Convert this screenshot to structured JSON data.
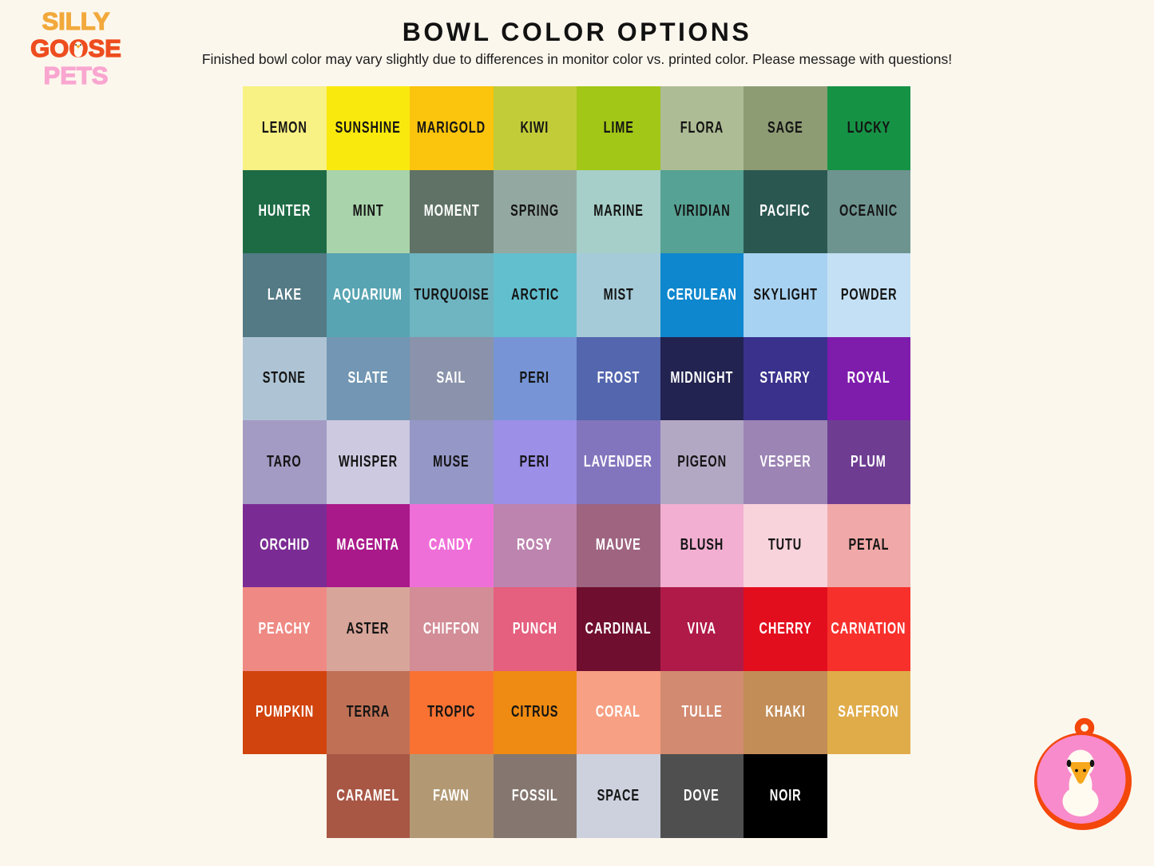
{
  "logo": {
    "line1": "SILLY",
    "line2_pre": "GO",
    "line2_o": "O",
    "line2_post": "SE",
    "line3": "PETS",
    "colors": {
      "silly": "#F2A93B",
      "goose": "#EE4D1F",
      "pets": "#F9A6D0"
    }
  },
  "header": {
    "title": "BOWL COLOR OPTIONS",
    "subtitle": "Finished bowl color may vary slightly due to differences in monitor color vs. printed color. Please message with questions!"
  },
  "grid": {
    "rows": [
      {
        "offset": 0,
        "cells": [
          {
            "name": "LEMON",
            "color": "#F8F183",
            "text": "#141414"
          },
          {
            "name": "SUNSHINE",
            "color": "#FAE90D",
            "text": "#141414"
          },
          {
            "name": "MARIGOLD",
            "color": "#FBC40D",
            "text": "#141414"
          },
          {
            "name": "KIWI",
            "color": "#C2CC39",
            "text": "#141414"
          },
          {
            "name": "LIME",
            "color": "#A2C717",
            "text": "#141414"
          },
          {
            "name": "FLORA",
            "color": "#ADBC94",
            "text": "#141414"
          },
          {
            "name": "SAGE",
            "color": "#8E9C74",
            "text": "#141414"
          },
          {
            "name": "LUCKY",
            "color": "#169245",
            "text": "#141414"
          }
        ]
      },
      {
        "offset": 0,
        "cells": [
          {
            "name": "HUNTER",
            "color": "#1D6B45",
            "text": "#FFFFFF"
          },
          {
            "name": "MINT",
            "color": "#A9D3AA",
            "text": "#141414"
          },
          {
            "name": "MOMENT",
            "color": "#5F7265",
            "text": "#FFFFFF"
          },
          {
            "name": "SPRING",
            "color": "#94A8A2",
            "text": "#141414"
          },
          {
            "name": "MARINE",
            "color": "#A5CFC8",
            "text": "#141414"
          },
          {
            "name": "VIRIDIAN",
            "color": "#56A294",
            "text": "#141414"
          },
          {
            "name": "PACIFIC",
            "color": "#2B5751",
            "text": "#FFFFFF"
          },
          {
            "name": "OCEANIC",
            "color": "#6E9490",
            "text": "#141414"
          }
        ]
      },
      {
        "offset": 0,
        "cells": [
          {
            "name": "LAKE",
            "color": "#537A85",
            "text": "#FFFFFF"
          },
          {
            "name": "AQUARIUM",
            "color": "#58A4B2",
            "text": "#FFFFFF"
          },
          {
            "name": "TURQUOISE",
            "color": "#6FB4C1",
            "text": "#141414"
          },
          {
            "name": "ARCTIC",
            "color": "#62BFCE",
            "text": "#141414"
          },
          {
            "name": "MIST",
            "color": "#A5CBD9",
            "text": "#141414"
          },
          {
            "name": "CERULEAN",
            "color": "#0E87CE",
            "text": "#FFFFFF"
          },
          {
            "name": "SKYLIGHT",
            "color": "#A8D2F2",
            "text": "#141414"
          },
          {
            "name": "POWDER",
            "color": "#C4E0F4",
            "text": "#141414"
          }
        ]
      },
      {
        "offset": 0,
        "cells": [
          {
            "name": "STONE",
            "color": "#AEC4D4",
            "text": "#141414"
          },
          {
            "name": "SLATE",
            "color": "#7296B3",
            "text": "#FFFFFF"
          },
          {
            "name": "SAIL",
            "color": "#8A93AB",
            "text": "#FFFFFF"
          },
          {
            "name": "PERI",
            "color": "#7795D6",
            "text": "#141414"
          },
          {
            "name": "FROST",
            "color": "#5366AE",
            "text": "#FFFFFF"
          },
          {
            "name": "MIDNIGHT",
            "color": "#222350",
            "text": "#FFFFFF"
          },
          {
            "name": "STARRY",
            "color": "#39318C",
            "text": "#FFFFFF"
          },
          {
            "name": "ROYAL",
            "color": "#7E1CAC",
            "text": "#FFFFFF"
          }
        ]
      },
      {
        "offset": 0,
        "cells": [
          {
            "name": "TARO",
            "color": "#A49BC4",
            "text": "#141414"
          },
          {
            "name": "WHISPER",
            "color": "#CCC9E0",
            "text": "#141414"
          },
          {
            "name": "MUSE",
            "color": "#9597C7",
            "text": "#141414"
          },
          {
            "name": "PERI",
            "color": "#9C8FE8",
            "text": "#141414"
          },
          {
            "name": "LAVENDER",
            "color": "#8375BD",
            "text": "#FFFFFF"
          },
          {
            "name": "PIGEON",
            "color": "#B3A8C4",
            "text": "#141414"
          },
          {
            "name": "VESPER",
            "color": "#9C84B4",
            "text": "#FFFFFF"
          },
          {
            "name": "PLUM",
            "color": "#6E3D91",
            "text": "#FFFFFF"
          }
        ]
      },
      {
        "offset": 0,
        "cells": [
          {
            "name": "ORCHID",
            "color": "#7B2C94",
            "text": "#FFFFFF"
          },
          {
            "name": "MAGENTA",
            "color": "#A9198A",
            "text": "#FFFFFF"
          },
          {
            "name": "CANDY",
            "color": "#EF6FD8",
            "text": "#FFFFFF"
          },
          {
            "name": "ROSY",
            "color": "#BD84AF",
            "text": "#FFFFFF"
          },
          {
            "name": "MAUVE",
            "color": "#9E6480",
            "text": "#FFFFFF"
          },
          {
            "name": "BLUSH",
            "color": "#F2AFD1",
            "text": "#141414"
          },
          {
            "name": "TUTU",
            "color": "#F8D3DC",
            "text": "#141414"
          },
          {
            "name": "PETAL",
            "color": "#F0A9A8",
            "text": "#141414"
          }
        ]
      },
      {
        "offset": 0,
        "cells": [
          {
            "name": "PEACHY",
            "color": "#EF8984",
            "text": "#FFFFFF"
          },
          {
            "name": "ASTER",
            "color": "#D8A59A",
            "text": "#141414"
          },
          {
            "name": "CHIFFON",
            "color": "#D28D96",
            "text": "#FFFFFF"
          },
          {
            "name": "PUNCH",
            "color": "#E55F7E",
            "text": "#FFFFFF"
          },
          {
            "name": "CARDINAL",
            "color": "#6F0E2F",
            "text": "#FFFFFF"
          },
          {
            "name": "VIVA",
            "color": "#B01A48",
            "text": "#FFFFFF"
          },
          {
            "name": "CHERRY",
            "color": "#E30E1D",
            "text": "#FFFFFF"
          },
          {
            "name": "CARNATION",
            "color": "#F7302C",
            "text": "#FFFFFF"
          }
        ]
      },
      {
        "offset": 0,
        "cells": [
          {
            "name": "PUMPKIN",
            "color": "#D1440E",
            "text": "#FFFFFF"
          },
          {
            "name": "TERRA",
            "color": "#C07155",
            "text": "#141414"
          },
          {
            "name": "TROPIC",
            "color": "#F97232",
            "text": "#141414"
          },
          {
            "name": "CITRUS",
            "color": "#EF8B12",
            "text": "#141414"
          },
          {
            "name": "CORAL",
            "color": "#F7A083",
            "text": "#FFFFFF"
          },
          {
            "name": "TULLE",
            "color": "#D28A70",
            "text": "#FFFFFF"
          },
          {
            "name": "KHAKI",
            "color": "#C28D57",
            "text": "#FFFFFF"
          },
          {
            "name": "SAFFRON",
            "color": "#E0AC4A",
            "text": "#FFFFFF"
          }
        ]
      },
      {
        "offset": 1,
        "cells": [
          {
            "name": "CARAMEL",
            "color": "#A85745",
            "text": "#FFFFFF"
          },
          {
            "name": "FAWN",
            "color": "#B29974",
            "text": "#FFFFFF"
          },
          {
            "name": "FOSSIL",
            "color": "#857770",
            "text": "#FFFFFF"
          },
          {
            "name": "SPACE",
            "color": "#CDD1DE",
            "text": "#141414"
          },
          {
            "name": "DOVE",
            "color": "#4F4F4F",
            "text": "#FFFFFF"
          },
          {
            "name": "NOIR",
            "color": "#000000",
            "text": "#FFFFFF"
          }
        ]
      }
    ]
  },
  "badge": {
    "colors": {
      "ring": "#F3470B",
      "inner": "#F88BCB",
      "goose_body": "#FFFBF1",
      "beak": "#F6A71B",
      "eye": "#131313"
    }
  }
}
